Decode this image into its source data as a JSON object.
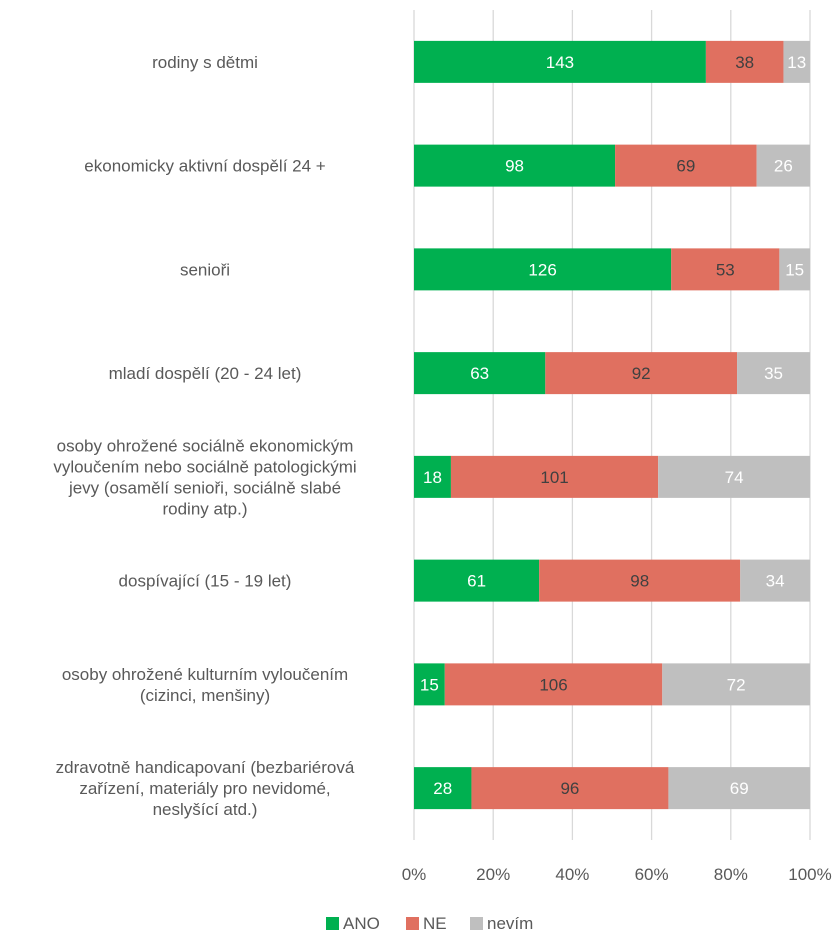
{
  "chart_data": {
    "type": "bar",
    "orientation": "horizontal",
    "stacked": "percent",
    "categories": [
      [
        "rodiny s dětmi"
      ],
      [
        "ekonomicky aktivní dospělí 24 +"
      ],
      [
        "senioři"
      ],
      [
        "mladí dospělí (20 - 24 let)"
      ],
      [
        "osoby ohrožené sociálně ekonomickým",
        "vyloučením nebo sociálně patologickými",
        "jevy (osamělí senioři, sociálně slabé",
        "rodiny atp.)"
      ],
      [
        "dospívající (15 - 19 let)"
      ],
      [
        "osoby ohrožené kulturním vyloučením",
        "(cizinci,  menšiny)"
      ],
      [
        "zdravotně handicapovaní (bezbariérová",
        "zařízení, materiály pro nevidomé,",
        "neslyšící atd.)"
      ]
    ],
    "series": [
      {
        "name": "ANO",
        "color": "#00b050",
        "label_color": "#ffffff",
        "values": [
          143,
          98,
          126,
          63,
          18,
          61,
          15,
          28
        ]
      },
      {
        "name": "NE",
        "color": "#e07060",
        "label_color": "#404040",
        "values": [
          38,
          69,
          53,
          92,
          101,
          98,
          106,
          96
        ]
      },
      {
        "name": "nevím",
        "color": "#bfbfbf",
        "label_color": "#ffffff",
        "values": [
          13,
          26,
          15,
          35,
          74,
          34,
          72,
          69
        ]
      }
    ],
    "x_ticks": [
      "0%",
      "20%",
      "40%",
      "60%",
      "80%",
      "100%"
    ],
    "xlim": [
      0,
      100
    ],
    "grid": true,
    "legend_position": "bottom",
    "title": "",
    "xlabel": "",
    "ylabel": ""
  }
}
